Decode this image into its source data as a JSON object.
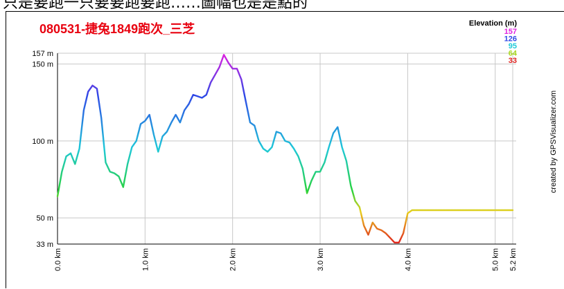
{
  "top_caption": "只是要跑一只要要跑要跑……圖幅也是是點的",
  "credit": "created by GPSVisualizer.com",
  "chart_data": {
    "type": "line",
    "title": "080531-捷兔1849跑次_三芝",
    "legend": {
      "title": "Elevation (m)",
      "placement": "top-right",
      "entries": [
        {
          "label": "157",
          "color": "#e020e0"
        },
        {
          "label": "126",
          "color": "#2f47e6"
        },
        {
          "label": "95",
          "color": "#1ec8d8"
        },
        {
          "label": "64",
          "color": "#a8d81e"
        },
        {
          "label": "33",
          "color": "#e0201e"
        }
      ]
    },
    "xlim": [
      0,
      5.2
    ],
    "ylim": [
      33,
      157
    ],
    "y_ticks": [
      {
        "value": 157,
        "label": "157 m"
      },
      {
        "value": 150,
        "label": "150 m"
      },
      {
        "value": 100,
        "label": "100 m"
      },
      {
        "value": 50,
        "label": "50 m"
      },
      {
        "value": 33,
        "label": "33 m"
      }
    ],
    "x_ticks": [
      {
        "value": 0,
        "label": "0.0 km"
      },
      {
        "value": 1,
        "label": "1.0 km"
      },
      {
        "value": 2,
        "label": "2.0 km"
      },
      {
        "value": 3,
        "label": "3.0 km"
      },
      {
        "value": 4,
        "label": "4.0 km"
      },
      {
        "value": 5,
        "label": "5.0 km"
      },
      {
        "value": 5.2,
        "label": "5.2 km"
      }
    ],
    "grid": true,
    "series": [
      {
        "x": [
          0.0,
          0.05,
          0.1,
          0.15,
          0.2,
          0.25,
          0.3,
          0.35,
          0.4,
          0.45,
          0.5,
          0.55,
          0.6,
          0.65,
          0.7,
          0.75,
          0.8,
          0.85,
          0.9,
          0.95,
          1.0,
          1.05,
          1.1,
          1.15,
          1.2,
          1.25,
          1.3,
          1.35,
          1.4,
          1.45,
          1.5,
          1.55,
          1.6,
          1.65,
          1.7,
          1.75,
          1.8,
          1.85,
          1.9,
          1.95,
          2.0,
          2.05,
          2.1,
          2.15,
          2.2,
          2.25,
          2.3,
          2.35,
          2.4,
          2.45,
          2.5,
          2.55,
          2.6,
          2.65,
          2.7,
          2.75,
          2.8,
          2.85,
          2.9,
          2.95,
          3.0,
          3.05,
          3.1,
          3.15,
          3.2,
          3.25,
          3.3,
          3.35,
          3.4,
          3.45,
          3.5,
          3.55,
          3.6,
          3.65,
          3.7,
          3.75,
          3.8,
          3.85,
          3.9,
          3.95,
          4.0,
          4.05,
          4.1,
          4.15,
          4.2,
          4.25,
          4.3,
          4.35,
          4.4,
          4.45,
          4.5,
          4.55,
          4.6,
          4.65,
          4.7,
          4.75,
          4.8,
          4.85,
          4.9,
          4.95,
          5.0,
          5.05,
          5.1,
          5.15,
          5.2
        ],
        "y": [
          64,
          80,
          90,
          92,
          85,
          95,
          120,
          132,
          136,
          134,
          115,
          86,
          80,
          79,
          77,
          70,
          85,
          96,
          100,
          111,
          113,
          117,
          104,
          93,
          103,
          106,
          112,
          117,
          112,
          120,
          124,
          130,
          129,
          128,
          130,
          138,
          143,
          148,
          156,
          151,
          147,
          147,
          140,
          126,
          112,
          110,
          100,
          95,
          93,
          96,
          106,
          105,
          100,
          99,
          95,
          90,
          82,
          66,
          74,
          80,
          80,
          86,
          96,
          105,
          109,
          96,
          87,
          71,
          61,
          57,
          45,
          39,
          47,
          43,
          42,
          40,
          37,
          34,
          34,
          40,
          53,
          55,
          55,
          55,
          55,
          55,
          55,
          55,
          55,
          55,
          55,
          55,
          55,
          55,
          55,
          55,
          55,
          55,
          55,
          55,
          55,
          55,
          55,
          55,
          55
        ]
      }
    ]
  }
}
